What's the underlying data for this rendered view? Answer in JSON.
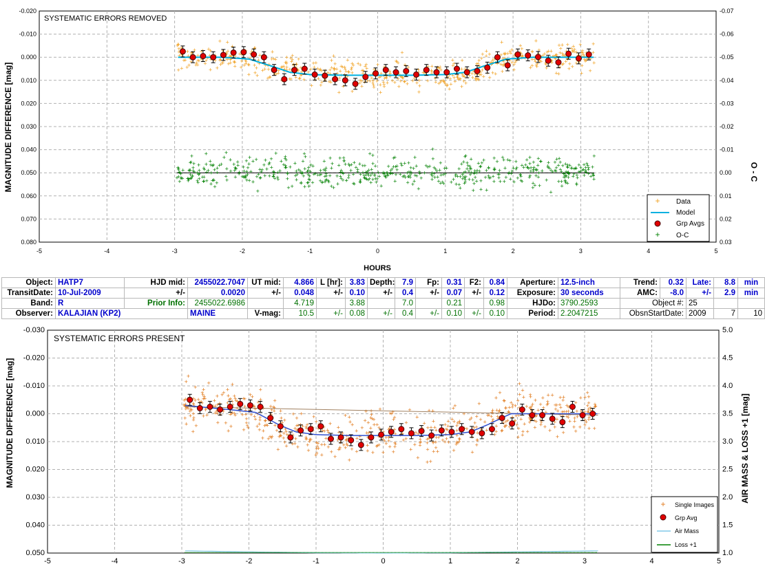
{
  "colors": {
    "data_orange": "#f0a020",
    "model_cyan": "#00b0e0",
    "oc_green": "#008000",
    "grp_red": "#e00000",
    "model_blue": "#3050d0",
    "airmass": "#80c8e8",
    "single_orange": "#e07818"
  },
  "chart_data": [
    {
      "type": "scatter",
      "title": "SYSTEMATIC ERRORS REMOVED",
      "xlabel": "HOURS",
      "ylabel": "MAGNITUDE DIFFERENCE [mag]",
      "y2label": "O - C",
      "xlim": [
        -5,
        5
      ],
      "ylim": [
        -0.02,
        0.08
      ],
      "y_inverted": true,
      "y2lim": [
        -0.07,
        0.03
      ],
      "grid": true,
      "legend_position": "bottom-right",
      "x_ticks": [
        "-5",
        "-4",
        "-3",
        "-2",
        "-1",
        "0",
        "1",
        "2",
        "3",
        "4",
        "5"
      ],
      "y_ticks": [
        "-0.020",
        "-0.010",
        "0.000",
        "0.010",
        "0.020",
        "0.030",
        "0.040",
        "0.050",
        "0.060",
        "0.070",
        "0.080"
      ],
      "y2_ticks": [
        "-0.07",
        "-0.06",
        "-0.05",
        "-0.04",
        "-0.03",
        "-0.02",
        "-0.01",
        "0.00",
        "0.01",
        "0.02",
        "0.03"
      ],
      "legend": [
        "Data",
        "Model",
        "Grp Avgs",
        "O-C"
      ],
      "model": {
        "x": [
          -2.95,
          -2.3,
          -1.9,
          -1.55,
          -1.3,
          -1.0,
          -0.5,
          0.0,
          0.5,
          1.0,
          1.3,
          1.55,
          1.9,
          2.3,
          3.2
        ],
        "y": [
          0.0,
          0.0,
          0.0008,
          0.004,
          0.0065,
          0.0075,
          0.0078,
          0.0078,
          0.0078,
          0.0075,
          0.0065,
          0.004,
          0.0008,
          0.0,
          0.0
        ]
      },
      "grp_avgs": {
        "x": [
          -2.88,
          -2.73,
          -2.58,
          -2.43,
          -2.28,
          -2.13,
          -1.98,
          -1.83,
          -1.68,
          -1.53,
          -1.38,
          -1.23,
          -1.08,
          -0.93,
          -0.78,
          -0.63,
          -0.48,
          -0.33,
          -0.18,
          -0.03,
          0.12,
          0.27,
          0.42,
          0.57,
          0.72,
          0.87,
          1.02,
          1.17,
          1.32,
          1.47,
          1.62,
          1.77,
          1.92,
          2.07,
          2.22,
          2.37,
          2.52,
          2.67,
          2.82,
          2.97,
          3.12
        ],
        "y": [
          -0.0025,
          0.0,
          -0.0005,
          0.0,
          -0.001,
          -0.002,
          -0.0022,
          -0.0012,
          0.0,
          0.0055,
          0.0095,
          0.0055,
          0.005,
          0.0075,
          0.008,
          0.0095,
          0.01,
          0.0115,
          0.0085,
          0.007,
          0.0055,
          0.0065,
          0.006,
          0.0075,
          0.0055,
          0.0065,
          0.0065,
          0.005,
          0.0065,
          0.006,
          0.0045,
          0.0,
          0.0035,
          -0.0012,
          -0.0008,
          -0.0001,
          0.0015,
          0.0022,
          -0.0015,
          0.0005,
          -0.0012
        ]
      },
      "oc_baseline": 0.0
    },
    {
      "type": "scatter",
      "title": "SYSTEMATIC ERRORS PRESENT",
      "xlabel": "",
      "ylabel": "MAGNITUDE DIFFERENCE [mag]",
      "y2label": "AIR MASS & LOSS +1 [mag]",
      "xlim": [
        -5,
        5
      ],
      "ylim": [
        -0.03,
        0.05
      ],
      "y_inverted": true,
      "y2lim": [
        1.0,
        5.0
      ],
      "grid": true,
      "legend_position": "bottom-right",
      "x_ticks": [
        "-5",
        "-4",
        "-3",
        "-2",
        "-1",
        "0",
        "1",
        "2",
        "3",
        "4",
        "5"
      ],
      "y_ticks": [
        "-0.030",
        "-0.020",
        "-0.010",
        "0.000",
        "0.010",
        "0.020",
        "0.030",
        "0.040",
        "0.050"
      ],
      "y2_ticks": [
        "5.0",
        "4.5",
        "4.0",
        "3.5",
        "3.0",
        "2.5",
        "2.0",
        "1.5",
        "1.0"
      ],
      "legend": [
        "Single Images",
        "Grp Avg",
        "Air Mass",
        "Loss +1"
      ],
      "model": {
        "x": [
          -2.95,
          -2.3,
          -1.9,
          -1.55,
          -1.3,
          -1.0,
          -0.5,
          0.0,
          0.5,
          1.0,
          1.3,
          1.55,
          1.9,
          2.3,
          3.2
        ],
        "y": [
          -0.003,
          -0.0015,
          -0.0005,
          0.004,
          0.0065,
          0.0075,
          0.0078,
          0.0078,
          0.0078,
          0.0075,
          0.0065,
          0.004,
          0.0,
          0.0,
          0.0
        ]
      },
      "grp_avgs": {
        "x": [
          -2.88,
          -2.73,
          -2.58,
          -2.43,
          -2.28,
          -2.13,
          -1.98,
          -1.83,
          -1.68,
          -1.53,
          -1.38,
          -1.23,
          -1.08,
          -0.93,
          -0.78,
          -0.63,
          -0.48,
          -0.33,
          -0.18,
          -0.03,
          0.12,
          0.27,
          0.42,
          0.57,
          0.72,
          0.87,
          1.02,
          1.17,
          1.32,
          1.47,
          1.62,
          1.77,
          1.92,
          2.07,
          2.22,
          2.37,
          2.52,
          2.67,
          2.82,
          2.97,
          3.12
        ],
        "y": [
          -0.005,
          -0.002,
          -0.0025,
          -0.0015,
          -0.0025,
          -0.0035,
          -0.003,
          -0.0025,
          0.0015,
          0.0045,
          0.0085,
          0.006,
          0.0055,
          0.0045,
          0.009,
          0.0085,
          0.0095,
          0.0112,
          0.0085,
          0.0075,
          0.0065,
          0.0055,
          0.007,
          0.0062,
          0.0078,
          0.006,
          0.0065,
          0.0055,
          0.0065,
          0.007,
          0.0055,
          0.0015,
          0.0035,
          -0.0015,
          0.0005,
          0.0005,
          0.0018,
          0.003,
          -0.0025,
          0.0005,
          0.0
        ]
      },
      "airmass": {
        "x": [
          -2.95,
          -2.0,
          -1.0,
          0.0,
          1.0,
          2.0,
          3.2
        ],
        "y": [
          1.04,
          1.02,
          1.005,
          1.0,
          1.005,
          1.02,
          1.04
        ]
      },
      "loss": {
        "x": [
          -2.95,
          3.2
        ],
        "y": [
          1.0,
          1.0
        ]
      }
    }
  ],
  "info": {
    "r1": {
      "object_lbl": "Object:",
      "object": "HATP7",
      "hjdmid_lbl": "HJD mid:",
      "hjdmid": "2455022.7047",
      "utmid_lbl": "UT mid:",
      "utmid": "4.866",
      "l_lbl": "L [hr]:",
      "l": "3.83",
      "depth_lbl": "Depth:",
      "depth": "7.9",
      "fp_lbl": "Fp:",
      "fp": "0.31",
      "f2_lbl": "F2:",
      "f2": "0.84",
      "aperture_lbl": "Aperture:",
      "aperture": "12.5-inch",
      "trend_lbl": "Trend:",
      "trend": "0.32",
      "late_lbl": "Late:",
      "late": "8.8",
      "late_unit": "min"
    },
    "r2": {
      "transit_lbl": "TransitDate:",
      "transit": "10-Jul-2009",
      "pm1_lbl": "+/-",
      "pm1": "0.0020",
      "pm2_lbl": "+/-",
      "pm2": "0.048",
      "pm3_lbl": "+/-",
      "pm3": "0.10",
      "pm4_lbl": "+/-",
      "pm4": "0.4",
      "pm5_lbl": "+/-",
      "pm5": "0.07",
      "pm6_lbl": "+/-",
      "pm6": "0.12",
      "exposure_lbl": "Exposure:",
      "exposure": "30 seconds",
      "amc_lbl": "AMC:",
      "amc": "-8.0",
      "pm7_lbl": "+/-",
      "pm7": "2.9",
      "pm7_unit": "min"
    },
    "r3": {
      "band_lbl": "Band:",
      "band": "R",
      "prior_lbl": "Prior Info:",
      "prior_hjd": "2455022.6986",
      "prior_ut": "4.719",
      "prior_l": "3.88",
      "prior_depth": "7.0",
      "prior_fp": "0.21",
      "prior_f2": "0.98",
      "hjdo_lbl": "HJDo:",
      "hjdo": "3790.2593",
      "objnum_lbl": "Object #:",
      "objnum": "25"
    },
    "r4": {
      "observer_lbl": "Observer:",
      "observer": "KALAJIAN (KP2)",
      "location": "MAINE",
      "vmag_lbl": "V-mag:",
      "vmag": "10.5",
      "pm1_lbl": "+/-",
      "pm1": "0.08",
      "pm2_lbl": "+/-",
      "pm2": "0.4",
      "pm3_lbl": "+/-",
      "pm3": "0.10",
      "pm4_lbl": "+/-",
      "pm4": "0.10",
      "period_lbl": "Period:",
      "period": "2.2047215",
      "obsstart_lbl": "ObsnStartDate:",
      "obs_year": "2009",
      "obs_month": "7",
      "obs_day": "10"
    }
  }
}
